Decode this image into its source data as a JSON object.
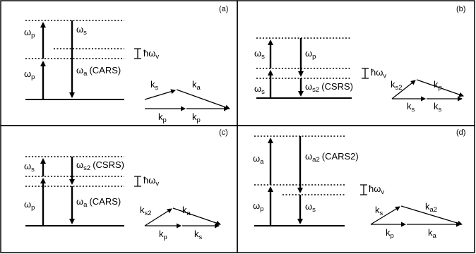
{
  "panels": [
    {
      "tag": "(a)",
      "pump": "ω",
      "pump_sub": "p",
      "pump2": "ω",
      "pump2_sub": "p",
      "stokes": "ω",
      "stokes_sub": "s",
      "anti": "ω",
      "anti_sub": "a",
      "anti_note": "(CARS)",
      "vib": "ħω",
      "vib_sub": "v",
      "k1": "k",
      "k1_sub": "s",
      "k2": "k",
      "k2_sub": "a",
      "k3": "k",
      "k3_sub": "p",
      "k4": "k",
      "k4_sub": "p"
    },
    {
      "tag": "(b)",
      "pump": "ω",
      "pump_sub": "s",
      "pump2": "ω",
      "pump2_sub": "s",
      "stokes": "ω",
      "stokes_sub": "p",
      "anti": "ω",
      "anti_sub": "s2",
      "anti_note": "(CSRS)",
      "vib": "ħω",
      "vib_sub": "v",
      "k1": "k",
      "k1_sub": "s2",
      "k2": "k",
      "k2_sub": "p",
      "k3": "k",
      "k3_sub": "s",
      "k4": "k",
      "k4_sub": "s"
    },
    {
      "tag": "(c)",
      "pump": "ω",
      "pump_sub": "s",
      "pump2": "ω",
      "pump2_sub": "p",
      "stokes": "ω",
      "stokes_sub": "s2",
      "stokes_note": "(CSRS)",
      "anti": "ω",
      "anti_sub": "a",
      "anti_note": "(CARS)",
      "vib": "ħω",
      "vib_sub": "v",
      "k1": "k",
      "k1_sub": "s2",
      "k2": "k",
      "k2_sub": "a",
      "k3": "k",
      "k3_sub": "p",
      "k4": "k",
      "k4_sub": "s"
    },
    {
      "tag": "(d)",
      "pump": "ω",
      "pump_sub": "a",
      "pump2": "ω",
      "pump2_sub": "p",
      "stokes": "ω",
      "stokes_sub": "a2",
      "stokes_note": "(CARS2)",
      "anti": "ω",
      "anti_sub": "s",
      "vib": "ħω",
      "vib_sub": "v",
      "k1": "k",
      "k1_sub": "s",
      "k2": "k",
      "k2_sub": "a2",
      "k3": "k",
      "k3_sub": "p",
      "k4": "k",
      "k4_sub": "a"
    }
  ]
}
